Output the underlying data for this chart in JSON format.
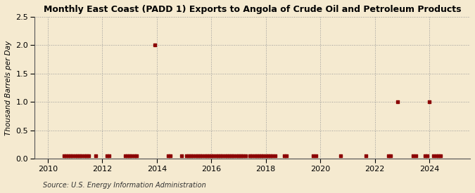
{
  "title": "Monthly East Coast (PADD 1) Exports to Angola of Crude Oil and Petroleum Products",
  "ylabel": "Thousand Barrels per Day",
  "source": "Source: U.S. Energy Information Administration",
  "background_color": "#f5ead0",
  "plot_background_color": "#f5ead0",
  "marker_color": "#8b0000",
  "xlim": [
    2009.5,
    2025.5
  ],
  "ylim": [
    0.0,
    2.5
  ],
  "yticks": [
    0.0,
    0.5,
    1.0,
    1.5,
    2.0,
    2.5
  ],
  "xticks": [
    2010,
    2012,
    2014,
    2016,
    2018,
    2020,
    2022,
    2024
  ],
  "data_points": [
    [
      2010.583,
      0.048
    ],
    [
      2010.667,
      0.048
    ],
    [
      2010.75,
      0.048
    ],
    [
      2010.833,
      0.048
    ],
    [
      2010.917,
      0.048
    ],
    [
      2011.0,
      0.048
    ],
    [
      2011.083,
      0.048
    ],
    [
      2011.167,
      0.048
    ],
    [
      2011.25,
      0.048
    ],
    [
      2011.333,
      0.048
    ],
    [
      2011.417,
      0.048
    ],
    [
      2011.5,
      0.048
    ],
    [
      2011.75,
      0.048
    ],
    [
      2012.167,
      0.048
    ],
    [
      2012.25,
      0.048
    ],
    [
      2012.833,
      0.048
    ],
    [
      2012.917,
      0.048
    ],
    [
      2013.0,
      0.048
    ],
    [
      2013.083,
      0.048
    ],
    [
      2013.167,
      0.048
    ],
    [
      2013.25,
      0.048
    ],
    [
      2013.917,
      2.0
    ],
    [
      2014.417,
      0.048
    ],
    [
      2014.5,
      0.048
    ],
    [
      2014.917,
      0.048
    ],
    [
      2015.083,
      0.048
    ],
    [
      2015.167,
      0.048
    ],
    [
      2015.25,
      0.048
    ],
    [
      2015.333,
      0.048
    ],
    [
      2015.417,
      0.048
    ],
    [
      2015.5,
      0.048
    ],
    [
      2015.583,
      0.048
    ],
    [
      2015.667,
      0.048
    ],
    [
      2015.75,
      0.048
    ],
    [
      2015.833,
      0.048
    ],
    [
      2015.917,
      0.048
    ],
    [
      2016.0,
      0.048
    ],
    [
      2016.083,
      0.048
    ],
    [
      2016.167,
      0.048
    ],
    [
      2016.25,
      0.048
    ],
    [
      2016.333,
      0.048
    ],
    [
      2016.417,
      0.048
    ],
    [
      2016.5,
      0.048
    ],
    [
      2016.583,
      0.048
    ],
    [
      2016.667,
      0.048
    ],
    [
      2016.75,
      0.048
    ],
    [
      2016.833,
      0.048
    ],
    [
      2016.917,
      0.048
    ],
    [
      2017.0,
      0.048
    ],
    [
      2017.083,
      0.048
    ],
    [
      2017.167,
      0.048
    ],
    [
      2017.25,
      0.048
    ],
    [
      2017.417,
      0.048
    ],
    [
      2017.5,
      0.048
    ],
    [
      2017.583,
      0.048
    ],
    [
      2017.667,
      0.048
    ],
    [
      2017.75,
      0.048
    ],
    [
      2017.833,
      0.048
    ],
    [
      2017.917,
      0.048
    ],
    [
      2018.0,
      0.048
    ],
    [
      2018.083,
      0.048
    ],
    [
      2018.167,
      0.048
    ],
    [
      2018.25,
      0.048
    ],
    [
      2018.333,
      0.048
    ],
    [
      2018.667,
      0.048
    ],
    [
      2018.75,
      0.048
    ],
    [
      2019.75,
      0.048
    ],
    [
      2019.833,
      0.048
    ],
    [
      2020.75,
      0.048
    ],
    [
      2021.667,
      0.048
    ],
    [
      2022.5,
      0.048
    ],
    [
      2022.583,
      0.048
    ],
    [
      2022.833,
      1.0
    ],
    [
      2023.417,
      0.048
    ],
    [
      2023.5,
      0.048
    ],
    [
      2023.833,
      0.048
    ],
    [
      2023.917,
      0.048
    ],
    [
      2024.0,
      1.0
    ],
    [
      2024.167,
      0.048
    ],
    [
      2024.25,
      0.048
    ],
    [
      2024.333,
      0.048
    ],
    [
      2024.417,
      0.048
    ]
  ]
}
